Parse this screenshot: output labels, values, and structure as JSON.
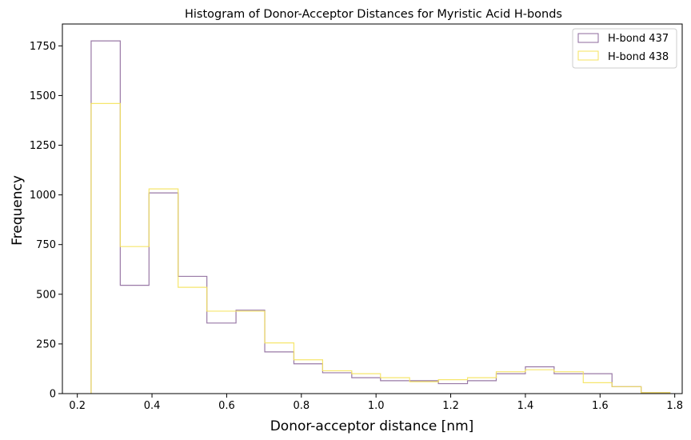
{
  "chart_data": {
    "type": "histogram",
    "title": "Histogram of Donor-Acceptor Distances for Myristic Acid H-bonds",
    "xlabel": "Donor-acceptor distance [nm]",
    "ylabel": "Frequency",
    "xlim": [
      0.16,
      1.82
    ],
    "ylim": [
      0,
      1860
    ],
    "xticks": [
      0.2,
      0.4,
      0.6,
      0.8,
      1.0,
      1.2,
      1.4,
      1.6,
      1.8
    ],
    "xtick_labels": [
      "0.2",
      "0.4",
      "0.6",
      "0.8",
      "1.0",
      "1.2",
      "1.4",
      "1.6",
      "1.8"
    ],
    "yticks": [
      0,
      250,
      500,
      750,
      1000,
      1250,
      1500,
      1750
    ],
    "ytick_labels": [
      "0",
      "250",
      "500",
      "750",
      "1000",
      "1250",
      "1500",
      "1750"
    ],
    "grid": false,
    "legend_position": "top-right",
    "series": [
      {
        "name": "H-bond 437",
        "color": "#8e6a9c",
        "bin_edges": [
          0.237,
          0.315,
          0.392,
          0.47,
          0.547,
          0.625,
          0.702,
          0.78,
          0.857,
          0.935,
          1.012,
          1.09,
          1.167,
          1.245,
          1.322,
          1.4,
          1.477,
          1.555,
          1.632,
          1.71,
          1.787
        ],
        "counts": [
          1775,
          545,
          1010,
          590,
          355,
          420,
          210,
          150,
          105,
          80,
          65,
          65,
          50,
          65,
          100,
          135,
          100,
          100,
          35,
          5
        ]
      },
      {
        "name": "H-bond 438",
        "color": "#f5e35c",
        "bin_edges": [
          0.237,
          0.315,
          0.392,
          0.47,
          0.547,
          0.625,
          0.702,
          0.78,
          0.857,
          0.935,
          1.012,
          1.09,
          1.167,
          1.245,
          1.322,
          1.4,
          1.477,
          1.555,
          1.632,
          1.71,
          1.787
        ],
        "counts": [
          1460,
          740,
          1030,
          535,
          415,
          415,
          255,
          170,
          115,
          100,
          80,
          60,
          70,
          80,
          110,
          120,
          110,
          55,
          35,
          5
        ]
      }
    ]
  }
}
